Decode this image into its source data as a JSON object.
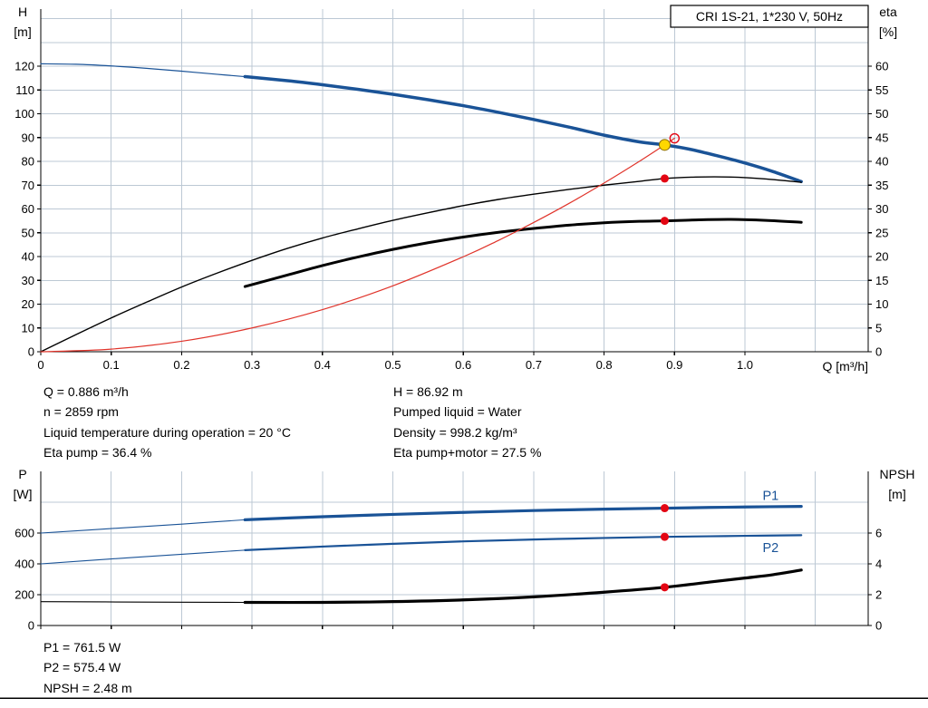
{
  "info": {
    "left": [
      "Q = 0.886 m³/h",
      "n = 2859 rpm",
      "Liquid temperature during operation = 20 °C",
      "Eta pump = 36.4 %"
    ],
    "right": [
      "H = 86.92 m",
      "Pumped liquid = Water",
      "Density = 998.2 kg/m³",
      "Eta pump+motor = 27.5 %"
    ]
  },
  "footer": [
    "P1 = 761.5 W",
    "P2 = 575.4 W",
    "NPSH = 2.48 m"
  ],
  "colors": {
    "curve_blue": "#1a5397",
    "curve_black": "#000000",
    "curve_red": "#e0342b",
    "dot_red": "#e30613",
    "duty_yellow": "#ffd800",
    "duty_stroke": "#8a6a00",
    "grid": "#bcc8d4",
    "axis": "#000000"
  },
  "chart_data": [
    {
      "type": "line",
      "title": "CRI 1S-21, 1*230 V, 50Hz",
      "show_title_box": true,
      "x_axis": {
        "label": "Q [m³/h]",
        "min": 0,
        "max": 1.175,
        "ticks": [
          0,
          0.1,
          0.2,
          0.3,
          0.4,
          0.5,
          0.6,
          0.7,
          0.8,
          0.9,
          1.0
        ],
        "tick_labels": [
          "0",
          "0.1",
          "0.2",
          "0.3",
          "0.4",
          "0.5",
          "0.6",
          "0.7",
          "0.8",
          "0.9",
          "1.0"
        ],
        "grid": [
          0.1,
          0.2,
          0.3,
          0.4,
          0.5,
          0.6,
          0.7,
          0.8,
          0.9,
          1.0,
          1.1
        ],
        "show_tick_labels": true
      },
      "y_left": {
        "label": "H",
        "unit": "[m]",
        "min": 0,
        "max": 144,
        "ticks": [
          0,
          10,
          20,
          30,
          40,
          50,
          60,
          70,
          80,
          90,
          100,
          110,
          120
        ],
        "grid": [
          10,
          20,
          30,
          40,
          50,
          60,
          70,
          80,
          90,
          100,
          110,
          120,
          130,
          140
        ]
      },
      "y_right": {
        "label": "eta",
        "unit": "[%]",
        "min": 0,
        "max": 72,
        "ticks": [
          0,
          5,
          10,
          15,
          20,
          25,
          30,
          35,
          40,
          45,
          50,
          55,
          60
        ]
      },
      "series": [
        {
          "name": "h-curve-extension",
          "axis": "left",
          "color": "#1a5397",
          "width": 1.2,
          "points": [
            [
              0,
              121
            ],
            [
              0.05,
              120.8
            ],
            [
              0.1,
              120.1
            ],
            [
              0.15,
              119.1
            ],
            [
              0.2,
              117.9
            ],
            [
              0.25,
              116.6
            ],
            [
              0.29,
              115.6
            ]
          ]
        },
        {
          "name": "h-curve",
          "axis": "left",
          "color": "#1a5397",
          "width": 3.5,
          "points": [
            [
              0.29,
              115.6
            ],
            [
              0.35,
              113.9
            ],
            [
              0.4,
              112.2
            ],
            [
              0.45,
              110.3
            ],
            [
              0.5,
              108.2
            ],
            [
              0.55,
              105.9
            ],
            [
              0.6,
              103.4
            ],
            [
              0.65,
              100.6
            ],
            [
              0.7,
              97.6
            ],
            [
              0.75,
              94.4
            ],
            [
              0.8,
              91.0
            ],
            [
              0.85,
              88.2
            ],
            [
              0.886,
              86.92
            ],
            [
              0.92,
              85.2
            ],
            [
              0.96,
              82.4
            ],
            [
              1.0,
              79.3
            ],
            [
              1.04,
              75.7
            ],
            [
              1.08,
              71.5
            ]
          ]
        },
        {
          "name": "eta-pump-curve",
          "axis": "right",
          "color": "#000000",
          "width": 1.4,
          "points": [
            [
              0,
              0
            ],
            [
              0.05,
              3.6
            ],
            [
              0.1,
              7.1
            ],
            [
              0.15,
              10.4
            ],
            [
              0.2,
              13.6
            ],
            [
              0.25,
              16.5
            ],
            [
              0.3,
              19.2
            ],
            [
              0.35,
              21.7
            ],
            [
              0.4,
              23.9
            ],
            [
              0.45,
              25.8
            ],
            [
              0.5,
              27.6
            ],
            [
              0.55,
              29.2
            ],
            [
              0.6,
              30.7
            ],
            [
              0.65,
              32.0
            ],
            [
              0.7,
              33.1
            ],
            [
              0.75,
              34.1
            ],
            [
              0.8,
              35.0
            ],
            [
              0.85,
              35.8
            ],
            [
              0.886,
              36.4
            ],
            [
              0.93,
              36.7
            ],
            [
              0.98,
              36.7
            ],
            [
              1.03,
              36.3
            ],
            [
              1.08,
              35.6
            ]
          ]
        },
        {
          "name": "eta-pump-motor-curve",
          "axis": "right",
          "color": "#000000",
          "width": 3,
          "points": [
            [
              0.29,
              13.7
            ],
            [
              0.35,
              16.1
            ],
            [
              0.4,
              18.1
            ],
            [
              0.45,
              19.9
            ],
            [
              0.5,
              21.5
            ],
            [
              0.55,
              22.9
            ],
            [
              0.6,
              24.1
            ],
            [
              0.65,
              25.1
            ],
            [
              0.7,
              25.9
            ],
            [
              0.75,
              26.6
            ],
            [
              0.8,
              27.1
            ],
            [
              0.85,
              27.4
            ],
            [
              0.886,
              27.5
            ],
            [
              0.93,
              27.7
            ],
            [
              0.98,
              27.8
            ],
            [
              1.03,
              27.6
            ],
            [
              1.08,
              27.2
            ]
          ]
        },
        {
          "name": "system-curve",
          "axis": "left",
          "color": "#e0342b",
          "width": 1.2,
          "points": [
            [
              0,
              0
            ],
            [
              0.1,
              1.1
            ],
            [
              0.2,
              4.4
            ],
            [
              0.3,
              10.0
            ],
            [
              0.4,
              17.7
            ],
            [
              0.5,
              27.7
            ],
            [
              0.6,
              39.9
            ],
            [
              0.65,
              46.8
            ],
            [
              0.7,
              54.3
            ],
            [
              0.75,
              62.3
            ],
            [
              0.8,
              70.9
            ],
            [
              0.85,
              80.0
            ],
            [
              0.886,
              86.92
            ],
            [
              0.9,
              89.7
            ]
          ]
        }
      ],
      "markers": [
        {
          "name": "duty-point-marker",
          "type": "duty",
          "x": 0.886,
          "y": 86.92,
          "axis": "left",
          "fill": "#ffd800",
          "stroke": "#8a6a00"
        },
        {
          "name": "requested-duty-open-marker",
          "type": "open",
          "x": 0.9,
          "y": 89.7,
          "axis": "left",
          "color": "#e30613"
        },
        {
          "name": "eta-pump-dot",
          "type": "dot",
          "x": 0.886,
          "y": 36.4,
          "axis": "right",
          "color": "#e30613"
        },
        {
          "name": "eta-pump-motor-dot",
          "type": "dot",
          "x": 0.886,
          "y": 27.5,
          "axis": "right",
          "color": "#e30613"
        }
      ],
      "labels": []
    },
    {
      "type": "line",
      "title": "",
      "show_title_box": false,
      "x_axis": {
        "label": "",
        "min": 0,
        "max": 1.175,
        "ticks": [
          0,
          0.1,
          0.2,
          0.3,
          0.4,
          0.5,
          0.6,
          0.7,
          0.8,
          0.9,
          1.0
        ],
        "tick_labels": [
          "0",
          "0.1",
          "0.2",
          "0.3",
          "0.4",
          "0.5",
          "0.6",
          "0.7",
          "0.8",
          "0.9",
          "1.0"
        ],
        "grid": [
          0.1,
          0.2,
          0.3,
          0.4,
          0.5,
          0.6,
          0.7,
          0.8,
          0.9,
          1.0,
          1.1
        ],
        "show_tick_labels": false
      },
      "y_left": {
        "label": "P",
        "unit": "[W]",
        "min": 0,
        "max": 1000,
        "ticks": [
          0,
          200,
          400,
          600
        ],
        "grid": [
          200,
          400,
          600,
          800
        ]
      },
      "y_right": {
        "label": "NPSH",
        "unit": "[m]",
        "min": 0,
        "max": 10,
        "ticks": [
          0,
          2,
          4,
          6
        ]
      },
      "series": [
        {
          "name": "p1-curve-extension",
          "axis": "left",
          "color": "#1a5397",
          "width": 1.1,
          "points": [
            [
              0,
              600
            ],
            [
              0.1,
              629
            ],
            [
              0.2,
              658
            ],
            [
              0.29,
              686
            ]
          ]
        },
        {
          "name": "p1-curve",
          "axis": "left",
          "color": "#1a5397",
          "width": 3.2,
          "points": [
            [
              0.29,
              686
            ],
            [
              0.4,
              706
            ],
            [
              0.5,
              721
            ],
            [
              0.6,
              734
            ],
            [
              0.7,
              746
            ],
            [
              0.8,
              755
            ],
            [
              0.886,
              761.5
            ],
            [
              0.95,
              766
            ],
            [
              1.0,
              769
            ],
            [
              1.08,
              773
            ]
          ]
        },
        {
          "name": "p2-curve-extension",
          "axis": "left",
          "color": "#1a5397",
          "width": 1.1,
          "points": [
            [
              0,
              400
            ],
            [
              0.1,
              432
            ],
            [
              0.2,
              462
            ],
            [
              0.29,
              489
            ]
          ]
        },
        {
          "name": "p2-curve",
          "axis": "left",
          "color": "#1a5397",
          "width": 2.2,
          "points": [
            [
              0.29,
              489
            ],
            [
              0.4,
              512
            ],
            [
              0.5,
              530
            ],
            [
              0.6,
              546
            ],
            [
              0.7,
              558
            ],
            [
              0.8,
              568
            ],
            [
              0.886,
              575.4
            ],
            [
              0.95,
              579
            ],
            [
              1.0,
              582
            ],
            [
              1.08,
              586
            ]
          ]
        },
        {
          "name": "npsh-curve-extension",
          "axis": "right",
          "color": "#000000",
          "width": 1.1,
          "points": [
            [
              0,
              1.55
            ],
            [
              0.15,
              1.52
            ],
            [
              0.29,
              1.5
            ]
          ]
        },
        {
          "name": "npsh-curve",
          "axis": "right",
          "color": "#000000",
          "width": 3.2,
          "points": [
            [
              0.29,
              1.5
            ],
            [
              0.4,
              1.5
            ],
            [
              0.5,
              1.55
            ],
            [
              0.6,
              1.66
            ],
            [
              0.7,
              1.86
            ],
            [
              0.8,
              2.16
            ],
            [
              0.886,
              2.48
            ],
            [
              0.95,
              2.82
            ],
            [
              1.0,
              3.08
            ],
            [
              1.04,
              3.3
            ],
            [
              1.08,
              3.6
            ]
          ]
        }
      ],
      "markers": [
        {
          "name": "p1-dot",
          "type": "dot",
          "x": 0.886,
          "y": 761.5,
          "axis": "left",
          "color": "#e30613"
        },
        {
          "name": "p2-dot",
          "type": "dot",
          "x": 0.886,
          "y": 575.4,
          "axis": "left",
          "color": "#e30613"
        },
        {
          "name": "npsh-dot",
          "type": "dot",
          "x": 0.886,
          "y": 2.48,
          "axis": "right",
          "color": "#e30613"
        }
      ],
      "labels": [
        {
          "text": "P1",
          "x": 1.025,
          "y": 845,
          "axis": "left",
          "color": "#1a5397"
        },
        {
          "text": "P2",
          "x": 1.025,
          "y": 505,
          "axis": "left",
          "color": "#1a5397"
        }
      ]
    }
  ]
}
